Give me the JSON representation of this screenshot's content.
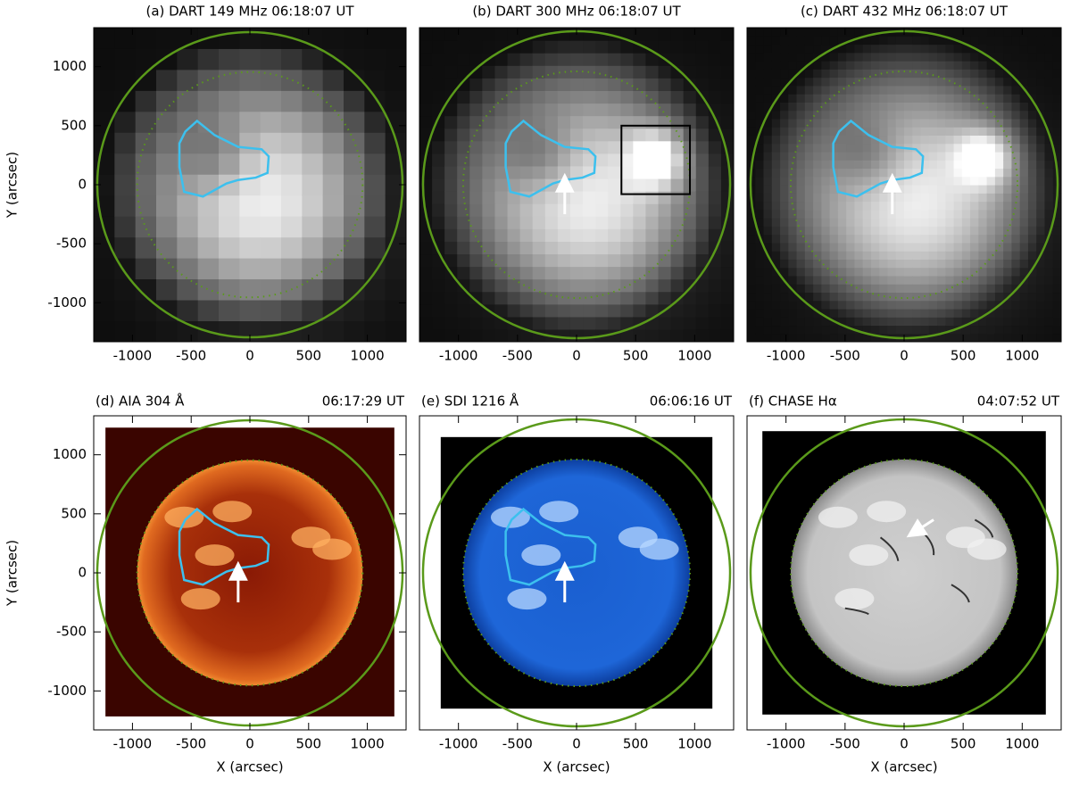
{
  "chart_data": [
    {
      "type": "image",
      "title": "(a) DART 149 MHz 06:18:07 UT",
      "ylabel": "Y (arcsec)",
      "xlim": [
        -1330,
        1330
      ],
      "ylim": [
        -1330,
        1330
      ],
      "xticks": [
        -1000,
        -500,
        0,
        500,
        1000
      ],
      "yticks": [
        -1000,
        -500,
        0,
        500,
        1000
      ]
    },
    {
      "type": "image",
      "title": "(b) DART 300 MHz 06:18:07 UT",
      "xlim": [
        -1330,
        1330
      ],
      "ylim": [
        -1330,
        1330
      ],
      "xticks": [
        -1000,
        -500,
        0,
        500,
        1000
      ]
    },
    {
      "type": "image",
      "title": "(c) DART 432 MHz 06:18:07 UT",
      "xlim": [
        -1330,
        1330
      ],
      "ylim": [
        -1330,
        1330
      ],
      "xticks": [
        -1000,
        -500,
        0,
        500,
        1000
      ]
    },
    {
      "type": "image",
      "title": "(d) AIA 304 Å",
      "time": "06:17:29 UT",
      "xlabel": "X (arcsec)",
      "ylabel": "Y (arcsec)",
      "xlim": [
        -1330,
        1330
      ],
      "ylim": [
        -1330,
        1330
      ],
      "xticks": [
        -1000,
        -500,
        0,
        500,
        1000
      ],
      "yticks": [
        -1000,
        -500,
        0,
        500,
        1000
      ]
    },
    {
      "type": "image",
      "title": "(e) SDI 1216 Å",
      "time": "06:06:16 UT",
      "xlabel": "X (arcsec)",
      "xlim": [
        -1330,
        1330
      ],
      "ylim": [
        -1330,
        1330
      ],
      "xticks": [
        -1000,
        -500,
        0,
        500,
        1000
      ]
    },
    {
      "type": "image",
      "title": "(f) CHASE Hα",
      "time": "04:07:52 UT",
      "xlabel": "X (arcsec)",
      "xlim": [
        -1330,
        1330
      ],
      "ylim": [
        -1330,
        1330
      ],
      "xticks": [
        -1000,
        -500,
        0,
        500,
        1000
      ]
    }
  ]
}
